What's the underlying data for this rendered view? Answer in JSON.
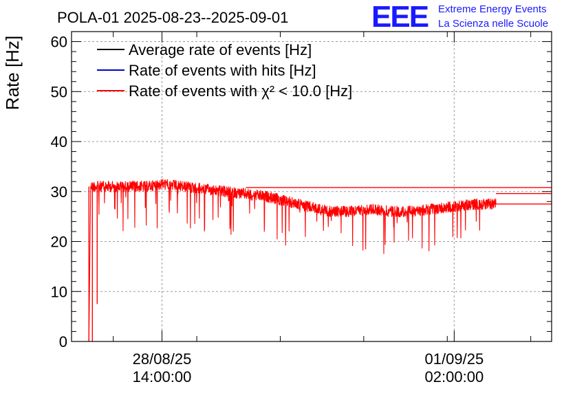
{
  "chart_data": {
    "type": "line",
    "title": "POLA-01 2025-08-23--2025-09-01",
    "ylabel": "Rate [Hz]",
    "xlabel": "",
    "ylim": [
      0,
      62
    ],
    "yticks": [
      0,
      10,
      20,
      30,
      40,
      50,
      60
    ],
    "xlim": [
      "2025-08-27 12:00",
      "2025-09-02 06:00"
    ],
    "xtick_labels": [
      {
        "at": "2025-08-28 14:00",
        "date": "28/08/25",
        "time": "14:00:00"
      },
      {
        "at": "2025-09-01 02:00",
        "date": "01/09/25",
        "time": "02:00:00"
      }
    ],
    "grid": true,
    "legend_position": "top-left",
    "series": [
      {
        "name": "Average rate of events [Hz]",
        "color": "#000000"
      },
      {
        "name": "Rate of events with hits [Hz]",
        "color": "#0000cc"
      },
      {
        "name": "Rate of events with χ² < 10.0 [Hz]",
        "color": "#ff0000",
        "values": [
          {
            "t": "2025-08-27 17:00",
            "y": 0
          },
          {
            "t": "2025-08-27 17:30",
            "y": 31
          },
          {
            "t": "2025-08-27 22:00",
            "y": 31
          },
          {
            "t": "2025-08-28 04:00",
            "y": 31
          },
          {
            "t": "2025-08-28 10:00",
            "y": 31
          },
          {
            "t": "2025-08-28 14:00",
            "y": 31.5
          },
          {
            "t": "2025-08-28 20:00",
            "y": 31
          },
          {
            "t": "2025-08-29 02:00",
            "y": 30.5
          },
          {
            "t": "2025-08-29 08:00",
            "y": 30
          },
          {
            "t": "2025-08-29 14:00",
            "y": 29.5
          },
          {
            "t": "2025-08-29 20:00",
            "y": 29
          },
          {
            "t": "2025-08-30 02:00",
            "y": 28
          },
          {
            "t": "2025-08-30 08:00",
            "y": 27
          },
          {
            "t": "2025-08-30 14:00",
            "y": 26
          },
          {
            "t": "2025-08-30 20:00",
            "y": 26
          },
          {
            "t": "2025-08-31 02:00",
            "y": 26.5
          },
          {
            "t": "2025-08-31 08:00",
            "y": 26
          },
          {
            "t": "2025-08-31 14:00",
            "y": 26
          },
          {
            "t": "2025-08-31 20:00",
            "y": 26.5
          },
          {
            "t": "2025-09-01 02:00",
            "y": 27
          },
          {
            "t": "2025-09-01 08:00",
            "y": 27.5
          },
          {
            "t": "2025-09-01 14:00",
            "y": 27.5
          }
        ]
      }
    ]
  },
  "logo": {
    "mark": "EEE",
    "line1": "Extreme Energy Events",
    "line2": "La Scienza nelle Scuole",
    "color": "#1a1aff"
  }
}
